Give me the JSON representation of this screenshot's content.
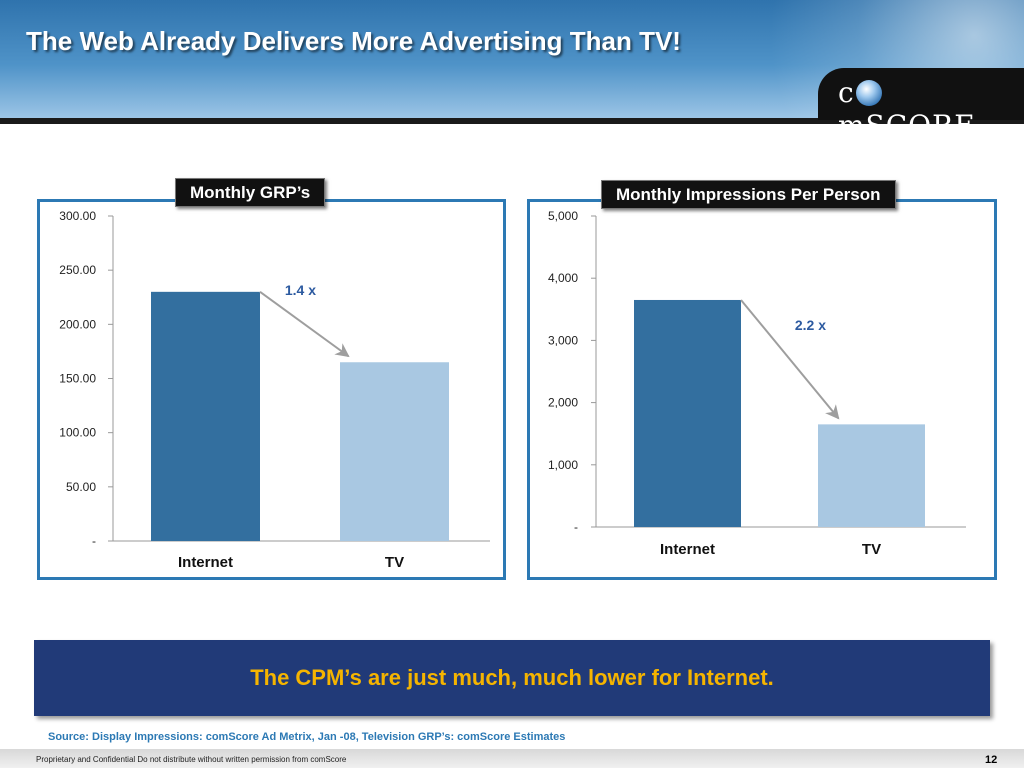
{
  "title": "The Web Already Delivers More Advertising Than TV!",
  "logo": {
    "text_before": "c",
    "text_after": "mSCORE",
    "suffix": "."
  },
  "chart_data": [
    {
      "type": "bar",
      "title": "Monthly GRP’s",
      "categories": [
        "Internet",
        "TV"
      ],
      "values": [
        230,
        165
      ],
      "ylim": [
        0,
        300
      ],
      "yticks": [
        0,
        50,
        100,
        150,
        200,
        250,
        300
      ],
      "ytick_labels": [
        "-",
        "50.00",
        "100.00",
        "150.00",
        "200.00",
        "250.00",
        "300.00"
      ],
      "annotation": "1.4 x",
      "colors": [
        "#336f9f",
        "#a9c8e2"
      ],
      "grid": false
    },
    {
      "type": "bar",
      "title": "Monthly Impressions Per Person",
      "categories": [
        "Internet",
        "TV"
      ],
      "values": [
        3650,
        1650
      ],
      "ylim": [
        0,
        5000
      ],
      "yticks": [
        0,
        1000,
        2000,
        3000,
        4000,
        5000
      ],
      "ytick_labels": [
        "-",
        "1,000",
        "2,000",
        "3,000",
        "4,000",
        "5,000"
      ],
      "annotation": "2.2 x",
      "colors": [
        "#336f9f",
        "#a9c8e2"
      ],
      "grid": false
    }
  ],
  "callout": "The CPM’s are just much, much lower for Internet.",
  "source": "Source:  Display Impressions:  comScore Ad Metrix, Jan -08, Television GRP’s:  comScore Estimates",
  "footer": "Proprietary and Confidential Do not distribute without written permission from comScore",
  "page_number": "12"
}
